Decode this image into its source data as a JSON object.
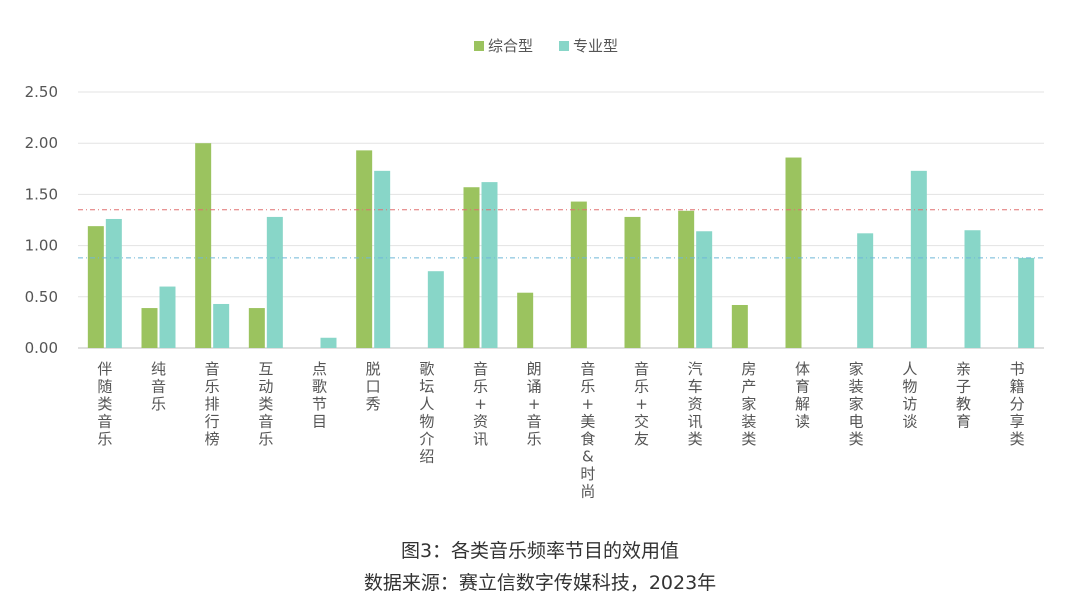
{
  "chart_data": {
    "type": "bar",
    "categories": [
      "伴随类音乐",
      "纯音乐",
      "音乐排行榜",
      "互动类音乐",
      "点歌节目",
      "脱口秀",
      "歌坛人物介绍",
      "音乐+资讯",
      "朗诵+音乐",
      "音乐+美食&时尚",
      "音乐+交友",
      "汽车资讯类",
      "房产家装类",
      "体育解读",
      "家装家电类",
      "人物访谈",
      "亲子教育",
      "书籍分享类"
    ],
    "series": [
      {
        "name": "综合型",
        "color": "#9bc35f",
        "values": [
          1.19,
          0.39,
          2.0,
          0.39,
          null,
          1.93,
          null,
          1.57,
          0.54,
          1.43,
          1.28,
          1.34,
          0.42,
          1.86,
          null,
          null,
          null,
          null
        ]
      },
      {
        "name": "专业型",
        "color": "#88d6c8",
        "values": [
          1.26,
          0.6,
          0.43,
          1.28,
          0.1,
          1.73,
          0.75,
          1.62,
          null,
          null,
          null,
          1.14,
          null,
          null,
          1.12,
          1.73,
          1.15,
          0.88
        ]
      }
    ],
    "reference_lines": [
      {
        "value": 1.35,
        "color": "#e07070",
        "style": "dash-dot"
      },
      {
        "value": 0.88,
        "color": "#6fb8d8",
        "style": "dash-dot"
      }
    ],
    "ylim": [
      0,
      2.5
    ],
    "yticks": [
      "0.00",
      "0.50",
      "1.00",
      "1.50",
      "2.00",
      "2.50"
    ],
    "grid": true,
    "legend_position": "top-center"
  },
  "caption": {
    "line1": "图3：各类音乐频率节目的效用值",
    "line2": "数据来源：赛立信数字传媒科技，2023年"
  }
}
